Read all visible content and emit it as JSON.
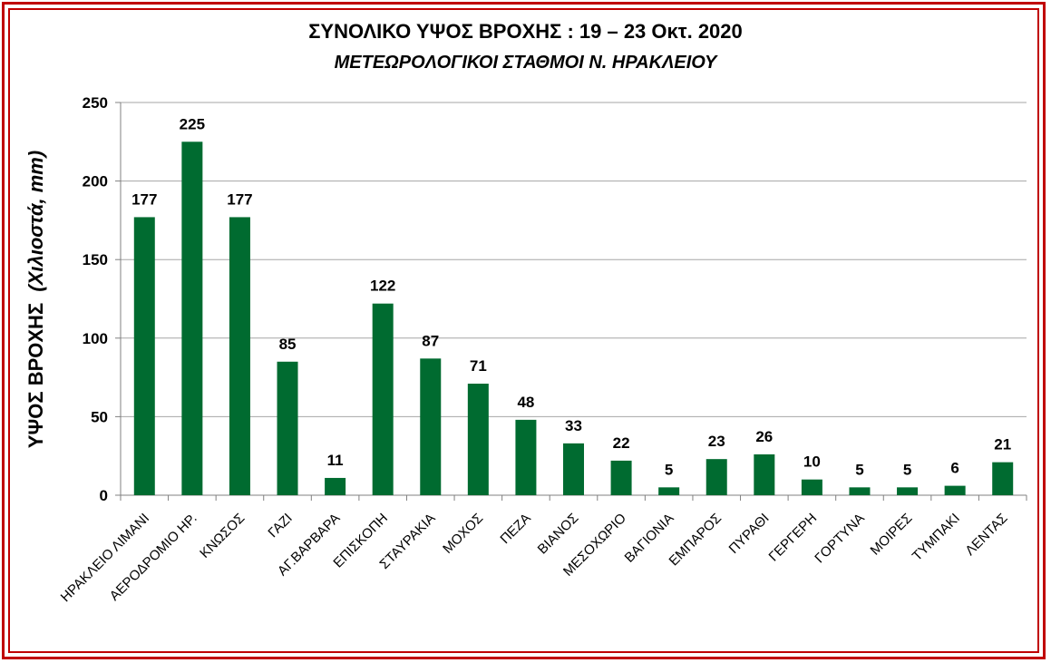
{
  "chart_data": {
    "type": "bar",
    "title": "ΣΥΝΟΛΙΚΟ ΥΨΟΣ ΒΡΟΧΗΣ  :  19 – 23 Οκτ. 2020",
    "subtitle": "ΜΕΤΕΩΡΟΛΟΓΙΚΟΙ ΣΤΑΘΜΟΙ  Ν. ΗΡΑΚΛΕΙΟΥ",
    "ylabel": "ΥΨΟΣ ΒΡΟΧΗΣ",
    "ylabel_unit": "(Χιλιοστά, mm)",
    "xlabel": "",
    "ylim": [
      0,
      250
    ],
    "yticks": [
      "0",
      "50",
      "100",
      "150",
      "200",
      "250"
    ],
    "grid": true,
    "bar_color": "#006b30",
    "categories": [
      "ΗΡΑΚΛΕΙΟ ΛΙΜΑΝΙ",
      "ΑΕΡΟΔΡΟΜΙΟ ΗΡ.",
      "ΚΝΩΣΟΣ",
      "ΓΑΖΙ",
      "ΑΓ.ΒΑΡΒΑΡΑ",
      "ΕΠΙΣΚΟΠΗ",
      "ΣΤΑΥΡΑΚΙΑ",
      "ΜΟΧΟΣ",
      "ΠΕΖΑ",
      "ΒΙΑΝΟΣ",
      "ΜΕΣΟΧΩΡΙΟ",
      "ΒΑΓΙΟΝΙΑ",
      "ΕΜΠΑΡΟΣ",
      "ΠΥΡΑΘΙ",
      "ΓΕΡΓΕΡΗ",
      "ΓΟΡΤΥΝΑ",
      "ΜΟΙΡΕΣ",
      "ΤΥΜΠΑΚΙ",
      "ΛΕΝΤΑΣ"
    ],
    "values": [
      177,
      225,
      177,
      85,
      11,
      122,
      87,
      71,
      48,
      33,
      22,
      5,
      23,
      26,
      10,
      5,
      5,
      6,
      21
    ]
  }
}
